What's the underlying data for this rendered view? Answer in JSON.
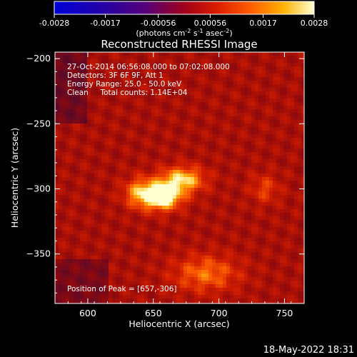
{
  "chart_data": {
    "type": "heatmap",
    "title": "Reconstructed RHESSI Image",
    "xlabel": "Heliocentric X (arcsec)",
    "ylabel": "Heliocentric Y (arcsec)",
    "xlim": [
      575,
      765
    ],
    "ylim": [
      -388,
      -195
    ],
    "x_ticks": [
      600,
      650,
      700,
      750
    ],
    "y_ticks": [
      -200,
      -250,
      -300,
      -350
    ],
    "colorbar": {
      "range": [
        -0.0028,
        0.0028
      ],
      "tick_values": [
        -0.0028,
        -0.0017,
        -0.00056,
        0.00056,
        0.0017,
        0.0028
      ],
      "tick_labels": [
        "-0.0028",
        "-0.0017",
        "-0.00056",
        "0.00056",
        "0.0017",
        "0.0028"
      ],
      "unit_parts": [
        "(photons cm",
        "-2",
        " s",
        "-1",
        " asec",
        "-2",
        ")"
      ]
    },
    "annotations": [
      "27-Oct-2014 06:56:08.000 to 07:02:08.000",
      "Detectors: 3F 6F 9F, Att 1",
      "Energy Range: 25.0 - 50.0 keV",
      "Clean     Total counts: 1.14E+04"
    ],
    "peak_label": "Position of Peak = [657,-306]",
    "peak": [
      657,
      -306
    ],
    "features": [
      {
        "x": 657,
        "y": -306,
        "sx": 10,
        "sy": 7,
        "amp": 1.0
      },
      {
        "x": 672,
        "y": -293,
        "sx": 12,
        "sy": 7,
        "amp": 0.72
      },
      {
        "x": 640,
        "y": -303,
        "sx": 9,
        "sy": 8,
        "amp": 0.55
      },
      {
        "x": 690,
        "y": -365,
        "sx": 18,
        "sy": 10,
        "amp": 0.45
      },
      {
        "x": 735,
        "y": -300,
        "sx": 8,
        "sy": 8,
        "amp": 0.3
      }
    ]
  },
  "footer": {
    "timestamp": "18-May-2022 18:31"
  }
}
